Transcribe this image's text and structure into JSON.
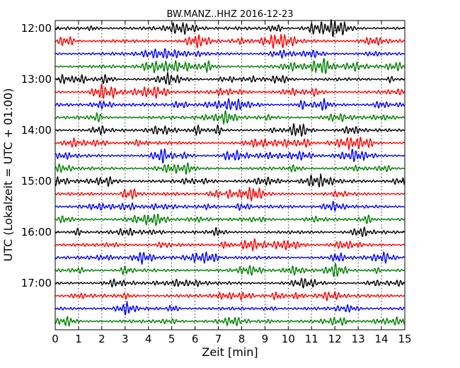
{
  "chart_data": {
    "type": "line",
    "title": "BW.MANZ..HHZ 2016-12-23",
    "xlabel": "Zeit  [min]",
    "ylabel": "UTC (Lokalzeit = UTC + 01:00)",
    "xlim": [
      0,
      15
    ],
    "x_ticks": [
      "0",
      "1",
      "2",
      "3",
      "4",
      "5",
      "6",
      "7",
      "8",
      "9",
      "10",
      "11",
      "12",
      "13",
      "14",
      "15"
    ],
    "y_ticks": [
      "12:00",
      "13:00",
      "14:00",
      "15:00",
      "16:00",
      "17:00"
    ],
    "grid": "vertical dotted lines at each minute",
    "trace_interval_minutes": 15,
    "start_time": "12:00",
    "trace_count": 24,
    "trace_colors": [
      "#000000",
      "#ff0000",
      "#0000ff",
      "#008000"
    ]
  }
}
